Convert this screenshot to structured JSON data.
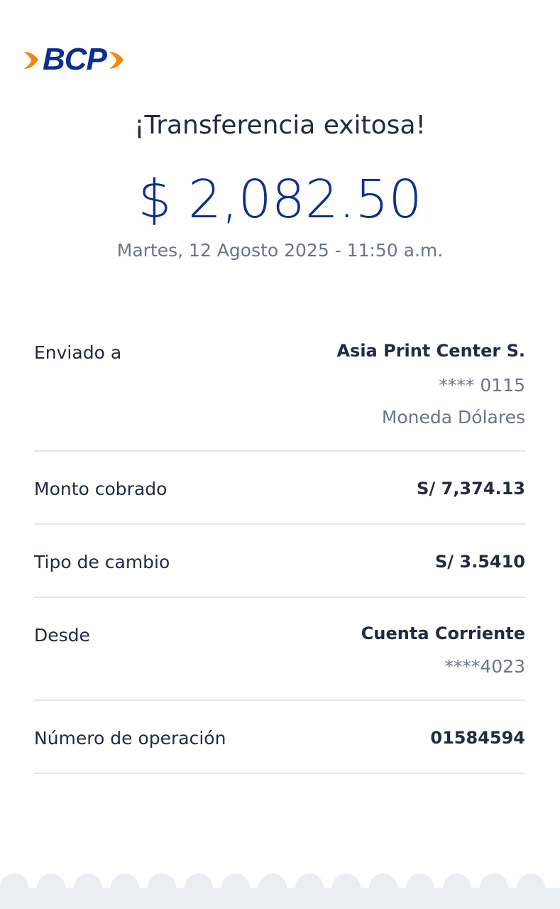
{
  "brand": {
    "logo_text": "BCP",
    "colors": {
      "blue": "#0b2f91",
      "orange": "#f7850f"
    }
  },
  "title": "¡Transferencia exitosa!",
  "amount": "$ 2,082.50",
  "datetime": "Martes, 12 Agosto 2025 - 11:50 a.m.",
  "details": [
    {
      "label": "Enviado a",
      "value": "Asia Print Center S.",
      "sub": [
        "**** 0115",
        "Moneda Dólares"
      ]
    },
    {
      "label": "Monto cobrado",
      "value": "S/ 7,374.13",
      "sub": []
    },
    {
      "label": "Tipo de cambio",
      "value": "S/ 3.5410",
      "sub": []
    },
    {
      "label": "Desde",
      "value": "Cuenta Corriente",
      "sub": [
        "****4023"
      ]
    },
    {
      "label": "Número de operación",
      "value": "01584594",
      "sub": []
    }
  ]
}
